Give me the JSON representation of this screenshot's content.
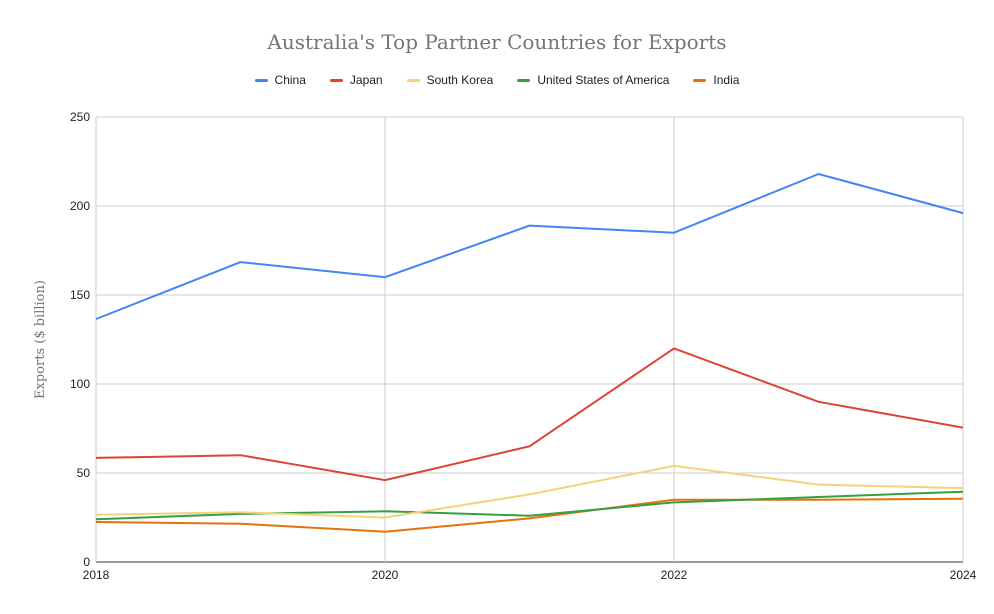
{
  "chart_data": {
    "type": "line",
    "title": "Australia's Top Partner Countries for Exports",
    "xlabel": "",
    "ylabel": "Exports ($ billion)",
    "x": [
      2018,
      2019,
      2020,
      2021,
      2022,
      2023,
      2024
    ],
    "xticks": [
      2018,
      2020,
      2022,
      2024
    ],
    "xlim": [
      2018,
      2024
    ],
    "yticks": [
      0,
      50,
      100,
      150,
      200,
      250
    ],
    "ylim": [
      0,
      250
    ],
    "grid": true,
    "legend_position": "top",
    "series": [
      {
        "name": "China",
        "color": "#4285f4",
        "values": [
          136.5,
          168.5,
          160,
          189,
          185,
          218,
          196
        ]
      },
      {
        "name": "Japan",
        "color": "#db4437",
        "values": [
          58.5,
          60,
          46,
          65,
          120,
          90,
          75.5
        ]
      },
      {
        "name": "South Korea",
        "color": "#f4d17a",
        "values": [
          26.5,
          28,
          25,
          38,
          54,
          43.5,
          41.5
        ]
      },
      {
        "name": "United States of America",
        "color": "#34a043",
        "values": [
          24,
          27,
          28.5,
          26,
          33.5,
          36.5,
          39.5
        ]
      },
      {
        "name": "India",
        "color": "#e8710a",
        "values": [
          22.5,
          21.5,
          17,
          24.5,
          35,
          35,
          35.5
        ]
      }
    ]
  }
}
